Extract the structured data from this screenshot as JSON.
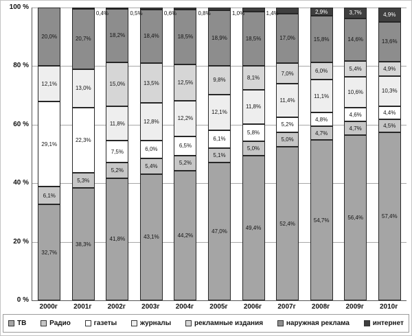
{
  "chart_data": {
    "type": "bar",
    "stacked": true,
    "normalized_100_percent": true,
    "title": "",
    "xlabel": "",
    "ylabel": "",
    "categories": [
      "2000г",
      "2001г",
      "2002г",
      "2003г",
      "2004г",
      "2005г",
      "2006г",
      "2007г",
      "2008г",
      "2009г",
      "2010г"
    ],
    "series": [
      {
        "name": "ТВ",
        "color": "#a5a5a5",
        "values": [
          32.7,
          38.3,
          41.8,
          43.1,
          44.2,
          47.0,
          49.4,
          52.4,
          54.7,
          56.4,
          57.4
        ]
      },
      {
        "name": "Радио",
        "color": "#c6c6c6",
        "values": [
          6.1,
          5.3,
          5.2,
          5.4,
          5.2,
          5.1,
          5.0,
          5.0,
          4.7,
          4.7,
          4.5
        ]
      },
      {
        "name": "газеты",
        "color": "#ffffff",
        "values": [
          29.1,
          22.3,
          7.5,
          6.0,
          6.5,
          6.1,
          5.8,
          5.2,
          4.8,
          4.6,
          4.4
        ]
      },
      {
        "name": "журналы",
        "color": "#eeeeee",
        "values": [
          12.1,
          13.0,
          11.8,
          12.8,
          12.2,
          12.1,
          11.8,
          11.4,
          11.1,
          10.6,
          10.3
        ]
      },
      {
        "name": "рекламные издания",
        "color": "#d6d6d6",
        "values": [
          null,
          null,
          15.0,
          13.5,
          12.5,
          9.8,
          8.1,
          7.0,
          6.0,
          5.4,
          4.9
        ]
      },
      {
        "name": "наружная реклама",
        "color": "#8d8d8d",
        "values": [
          20.0,
          20.7,
          18.2,
          18.4,
          18.5,
          18.9,
          18.5,
          17.0,
          15.8,
          14.6,
          13.6
        ]
      },
      {
        "name": "интернет",
        "color": "#3f3f3f",
        "values": [
          null,
          0.4,
          0.5,
          0.6,
          0.8,
          1.0,
          1.4,
          2.0,
          2.9,
          3.7,
          4.9
        ],
        "inside_label_color": "#ffffff",
        "outside_label_threshold": 1.5
      }
    ],
    "y_axis": {
      "min": 0,
      "max": 100,
      "tick_values": [
        0,
        20,
        40,
        60,
        80,
        100
      ],
      "tick_suffix": " %"
    },
    "label_format": "comma_decimal_percent",
    "gridlines": true,
    "legend_position": "bottom"
  }
}
